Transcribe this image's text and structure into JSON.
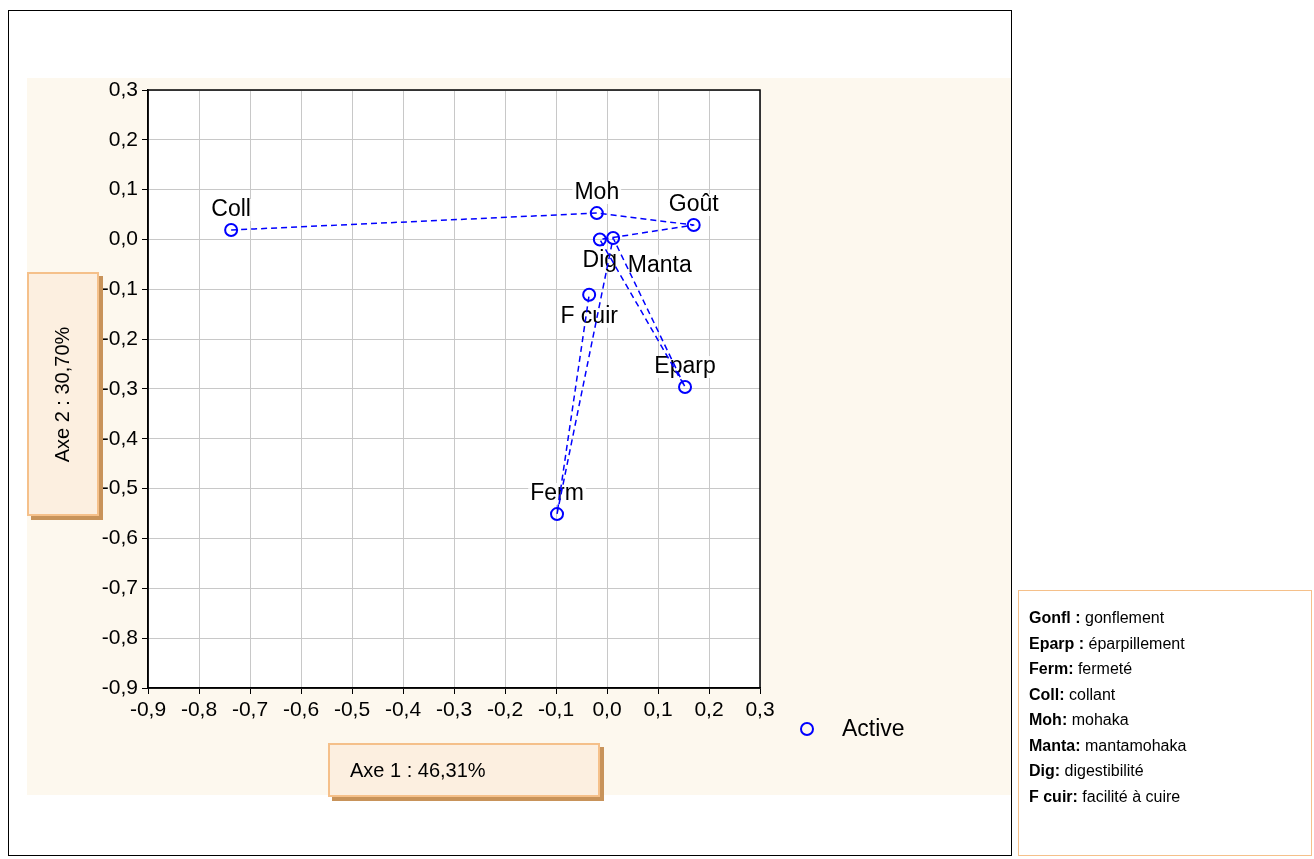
{
  "chart_data": {
    "type": "scatter",
    "xlabel": "Axe 1 : 46,31%",
    "ylabel": "Axe 2 : 30,70%",
    "x": [
      -0.737,
      -0.02,
      0.17,
      -0.014,
      0.153,
      0.012,
      -0.098,
      -0.035
    ],
    "series": [
      {
        "name": "Active",
        "color": "#0000ff",
        "values": [
          0.019,
          0.053,
          0.029,
          0.0,
          -0.296,
          0.003,
          -0.551,
          -0.111
        ]
      }
    ],
    "xlim": [
      -0.9,
      0.3
    ],
    "ylim": [
      -0.9,
      0.3
    ],
    "xticks": [
      {
        "value": -0.9,
        "label": "-0,9"
      },
      {
        "value": -0.8,
        "label": "-0,8"
      },
      {
        "value": -0.7,
        "label": "-0,7"
      },
      {
        "value": -0.6,
        "label": "-0,6"
      },
      {
        "value": -0.5,
        "label": "-0,5"
      },
      {
        "value": -0.4,
        "label": "-0,4"
      },
      {
        "value": -0.3,
        "label": "-0,3"
      },
      {
        "value": -0.2,
        "label": "-0,2"
      },
      {
        "value": -0.1,
        "label": "-0,1"
      },
      {
        "value": 0,
        "label": "0,0"
      },
      {
        "value": 0.1,
        "label": "0,1"
      },
      {
        "value": 0.2,
        "label": "0,2"
      },
      {
        "value": 0.3,
        "label": "0,3"
      }
    ],
    "yticks": [
      {
        "value": -0.9,
        "label": "-0,9"
      },
      {
        "value": -0.8,
        "label": "-0,8"
      },
      {
        "value": -0.7,
        "label": "-0,7"
      },
      {
        "value": -0.6,
        "label": "-0,6"
      },
      {
        "value": -0.5,
        "label": "-0,5"
      },
      {
        "value": -0.4,
        "label": "-0,4"
      },
      {
        "value": -0.3,
        "label": "-0,3"
      },
      {
        "value": -0.2,
        "label": "-0,2"
      },
      {
        "value": -0.1,
        "label": "-0,1"
      },
      {
        "value": 0,
        "label": "0,0"
      },
      {
        "value": 0.1,
        "label": "0,1"
      },
      {
        "value": 0.2,
        "label": "0,2"
      },
      {
        "value": 0.3,
        "label": "0,3"
      }
    ],
    "grid": true,
    "legend": "right",
    "marker": "circle",
    "line_style": "dashed",
    "annotations": [
      {
        "text": "Coll",
        "x": -0.737,
        "y": 0.019
      },
      {
        "text": "Moh",
        "x": -0.02,
        "y": 0.053
      },
      {
        "text": "Goût",
        "x": 0.17,
        "y": 0.029
      },
      {
        "text": "Dig",
        "x": -0.014,
        "y": 0.0
      },
      {
        "text": "Eparp",
        "x": 0.153,
        "y": -0.296
      },
      {
        "text": "Manta",
        "x": 0.012,
        "y": 0.003
      },
      {
        "text": "Ferm",
        "x": -0.098,
        "y": -0.551
      },
      {
        "text": "F cuir",
        "x": -0.035,
        "y": -0.111
      },
      "Gonfl : gonflement",
      "Eparp : éparpillement",
      "Ferm: fermeté",
      "Coll: collant",
      "Moh: mohaka",
      "Manta: mantamohaka",
      "Dig: digestibilité",
      "F cuir: facilité à cuire"
    ]
  }
}
